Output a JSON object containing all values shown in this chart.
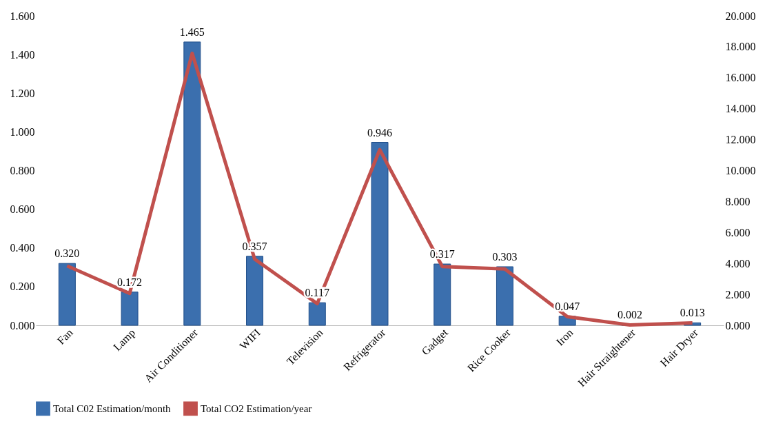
{
  "chart_data": {
    "type": "bar",
    "categories": [
      "Fan",
      "Lamp",
      "Air Conditioner",
      "WIFI",
      "Television",
      "Refrigerator",
      "Gadget",
      "Rice Cooker",
      "Iron",
      "Hair Straightener",
      "Hair Dryer"
    ],
    "series": [
      {
        "name": "Total C02 Estimation/month",
        "color": "#3b6fae",
        "values": [
          0.32,
          0.172,
          1.465,
          0.357,
          0.117,
          0.946,
          0.317,
          0.303,
          0.047,
          0.002,
          0.013
        ],
        "value_labels": [
          "0.320",
          "0.172",
          "1.465",
          "0.357",
          "0.117",
          "0.946",
          "0.317",
          "0.303",
          "0.047",
          "0.002",
          "0.013"
        ]
      },
      {
        "name": "Total CO2 Estimation/year",
        "type": "line",
        "axis": "y2",
        "color": "#c0504d",
        "values": [
          3.84,
          2.06,
          17.58,
          4.28,
          1.4,
          11.35,
          3.8,
          3.64,
          0.56,
          0.02,
          0.16
        ]
      }
    ],
    "ylim": [
      0,
      1.6
    ],
    "yticks": [
      {
        "value": 0,
        "label": "0.000"
      },
      {
        "value": 0.2,
        "label": "0.200"
      },
      {
        "value": 0.4,
        "label": "0.400"
      },
      {
        "value": 0.6,
        "label": "0.600"
      },
      {
        "value": 0.8,
        "label": "0.800"
      },
      {
        "value": 1.0,
        "label": "1.000"
      },
      {
        "value": 1.2,
        "label": "1.200"
      },
      {
        "value": 1.4,
        "label": "1.400"
      },
      {
        "value": 1.6,
        "label": "1.600"
      }
    ],
    "y2lim": [
      0,
      20
    ],
    "y2ticks": [
      {
        "value": 0,
        "label": "0.000"
      },
      {
        "value": 2,
        "label": "2.000"
      },
      {
        "value": 4,
        "label": "4.000"
      },
      {
        "value": 6,
        "label": "6.000"
      },
      {
        "value": 8,
        "label": "8.000"
      },
      {
        "value": 10,
        "label": "10.000"
      },
      {
        "value": 12,
        "label": "12.000"
      },
      {
        "value": 14,
        "label": "14.000"
      },
      {
        "value": 16,
        "label": "16.000"
      },
      {
        "value": 18,
        "label": "18.000"
      },
      {
        "value": 20,
        "label": "20.000"
      }
    ],
    "grid": false,
    "legend": "bottom"
  }
}
